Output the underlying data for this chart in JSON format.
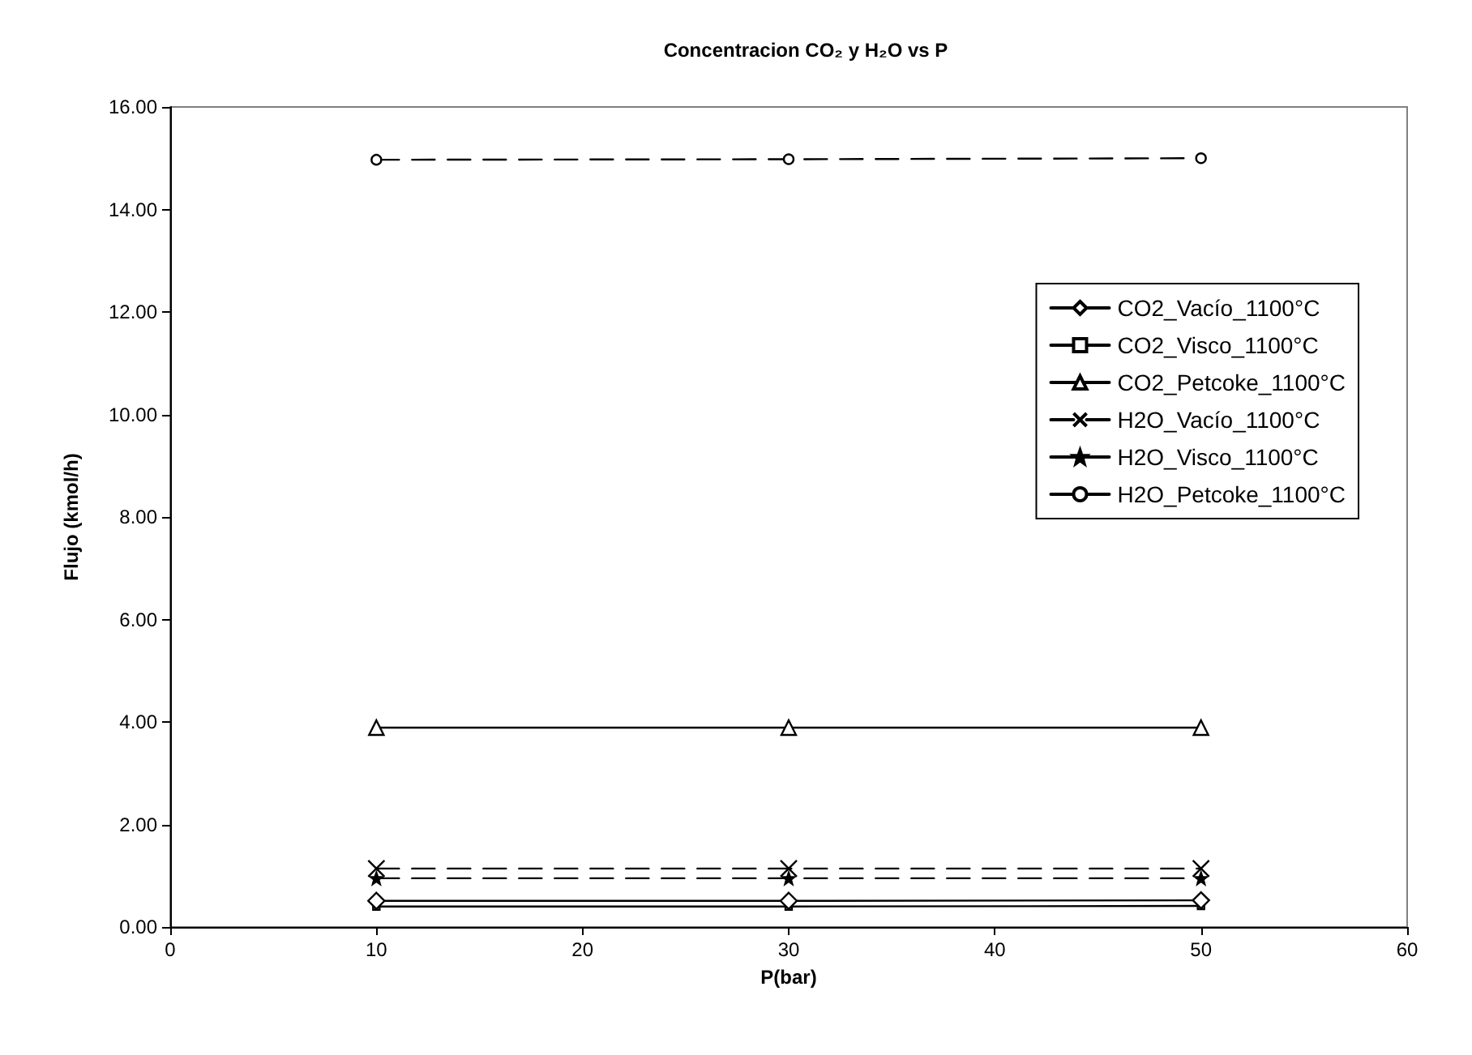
{
  "chart_data": {
    "type": "line",
    "title": "Concentracion CO₂ y H₂O vs P",
    "xlabel": "P(bar)",
    "ylabel": "Flujo (kmol/h)",
    "x": [
      10,
      30,
      50
    ],
    "series": [
      {
        "name": "CO2_Vacío_1100°C",
        "color": "#000000",
        "marker": "diamond",
        "line_style": "solid",
        "values": [
          0.51,
          0.51,
          0.52
        ]
      },
      {
        "name": "CO2_Visco_1100°C",
        "color": "#000000",
        "marker": "square",
        "line_style": "solid",
        "values": [
          0.4,
          0.4,
          0.41
        ]
      },
      {
        "name": "CO2_Petcoke_1100°C",
        "color": "#000000",
        "marker": "triangle",
        "line_style": "solid",
        "values": [
          3.89,
          3.89,
          3.89
        ]
      },
      {
        "name": "H2O_Vacío_1100°C",
        "color": "#000000",
        "marker": "cross",
        "line_style": "dashed",
        "values": [
          1.14,
          1.14,
          1.14
        ]
      },
      {
        "name": "H2O_Visco_1100°C",
        "color": "#000000",
        "marker": "star",
        "line_style": "dashed",
        "values": [
          0.95,
          0.95,
          0.95
        ]
      },
      {
        "name": "H2O_Petcoke_1100°C",
        "color": "#000000",
        "marker": "circle",
        "line_style": "dashed",
        "values": [
          14.97,
          14.98,
          15.0
        ]
      }
    ],
    "xlim": [
      0,
      60
    ],
    "xticks": [
      0,
      10,
      20,
      30,
      40,
      50,
      60
    ],
    "ylim": [
      0,
      16
    ],
    "yticks": [
      {
        "value": 0,
        "label": "0.00"
      },
      {
        "value": 2,
        "label": "2.00"
      },
      {
        "value": 4,
        "label": "4.00"
      },
      {
        "value": 6,
        "label": "6.00"
      },
      {
        "value": 8,
        "label": "8.00"
      },
      {
        "value": 10,
        "label": "10.00"
      },
      {
        "value": 12,
        "label": "12.00"
      },
      {
        "value": 14,
        "label": "14.00"
      },
      {
        "value": 16,
        "label": "16.00"
      }
    ],
    "grid": false,
    "legend": "right"
  }
}
